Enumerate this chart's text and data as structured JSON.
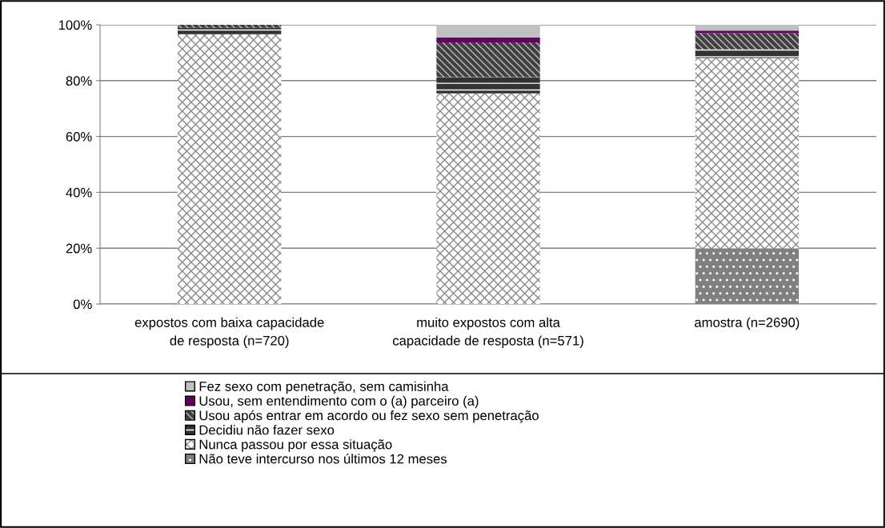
{
  "chart_data": {
    "type": "bar",
    "stacked": true,
    "categories": [
      "expostos com baixa capacidade de resposta (n=720)",
      "muito expostos com alta capacidade de resposta (n=571)",
      "amostra (n=2690)"
    ],
    "series": [
      {
        "name": "Não teve intercurso nos últimos 12 meses",
        "color": "#808080",
        "values": [
          0,
          0,
          19.9
        ]
      },
      {
        "name": "Nunca passou por essa situação",
        "color": "#ffffff",
        "values": [
          96.6,
          75.4,
          68.2
        ]
      },
      {
        "name": "Decidiu não fazer sexo",
        "color": "#333333",
        "values": [
          2.3,
          5.8,
          3.1
        ]
      },
      {
        "name": "Usou após entrar em acordo ou fez sexo sem penetração",
        "color": "#404040",
        "values": [
          1.1,
          12.5,
          5.8
        ]
      },
      {
        "name": "Usou, sem entendimento com o (a) parceiro (a)",
        "color": "#660066",
        "values": [
          0,
          1.7,
          0.9
        ]
      },
      {
        "name": "Fez sexo com penetração, sem camisinha",
        "color": "#c0c0c0",
        "values": [
          0,
          4.6,
          2.1
        ]
      }
    ],
    "ylim": [
      0,
      100
    ],
    "yticks": [
      {
        "value": 0,
        "label": "0%"
      },
      {
        "value": 20,
        "label": "20%"
      },
      {
        "value": 40,
        "label": "40%"
      },
      {
        "value": 60,
        "label": "60%"
      },
      {
        "value": 80,
        "label": "80%"
      },
      {
        "value": 100,
        "label": "100%"
      }
    ],
    "grid": "y",
    "legend": "bottom"
  }
}
